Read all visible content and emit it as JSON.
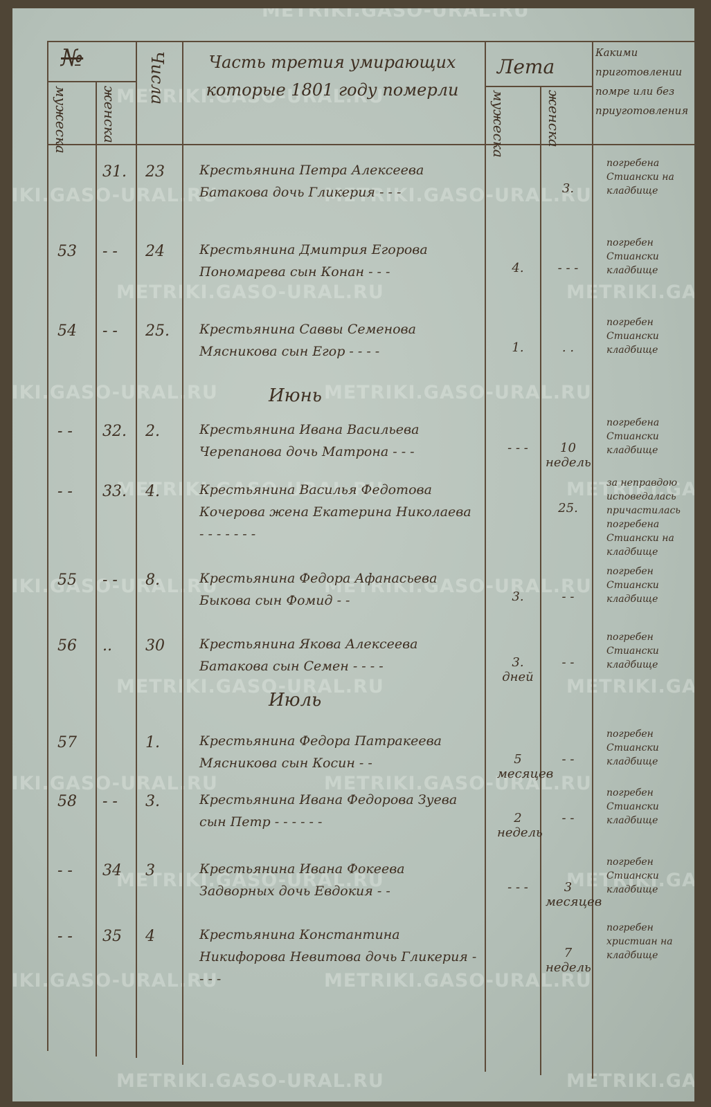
{
  "watermark": "METRIKI.GASO-URAL.RU",
  "header": {
    "number": "№",
    "male": "мужеска",
    "female": "женска",
    "day": "Числа",
    "title": "Часть третия умирающих которые 1801 году померли",
    "age": "Лета",
    "age_male": "мужеска",
    "age_female": "женска",
    "preparation": "Какими приготовлении помре или без приуготовления"
  },
  "sections": [
    {
      "month": "",
      "entries": [
        {
          "male_no": "",
          "female_no": "31.",
          "day": "23",
          "text": "Крестьянина Петра Алексеева Батакова дочь Гликерия - - -",
          "age_male": "",
          "age_female": "3.",
          "note": "погребена Стиански на кладбище"
        },
        {
          "male_no": "53",
          "female_no": "- -",
          "day": "24",
          "text": "Крестьянина Дмитрия Егорова Пономарева сын Конан - - -",
          "age_male": "4.",
          "age_female": "- - -",
          "note": "погребен Стиански кладбище"
        },
        {
          "male_no": "54",
          "female_no": "- -",
          "day": "25.",
          "text": "Крестьянина Саввы Семенова Мясникова сын Егор - - - -",
          "age_male": "1.",
          "age_female": ". .",
          "note": "погребен Стиански кладбище"
        }
      ]
    },
    {
      "month": "Июнь",
      "entries": [
        {
          "male_no": "- -",
          "female_no": "32.",
          "day": "2.",
          "text": "Крестьянина Ивана Васильева Черепанова дочь Матрона - - -",
          "age_male": "- - -",
          "age_female": "10 недель",
          "note": "погребена Стиански кладбище"
        },
        {
          "male_no": "- -",
          "female_no": "33.",
          "day": "4.",
          "text": "Крестьянина Василья Федотова Кочерова жена Екатерина Николаева - - - - - - -",
          "age_male": "",
          "age_female": "25.",
          "note": "за неправдою исповедалась причастилась погребена Стиански на кладбище"
        },
        {
          "male_no": "55",
          "female_no": "- -",
          "day": "8.",
          "text": "Крестьянина Федора Афанасьева Быкова сын Фомид - -",
          "age_male": "3.",
          "age_female": "- -",
          "note": "погребен Стиански кладбище"
        },
        {
          "male_no": "56",
          "female_no": "..",
          "day": "30",
          "text": "Крестьянина Якова Алексеева Батакова сын Семен - - - -",
          "age_male": "3. дней",
          "age_female": "- -",
          "note": "погребен Стиански кладбище"
        }
      ]
    },
    {
      "month": "Июль",
      "entries": [
        {
          "male_no": "57",
          "female_no": "",
          "day": "1.",
          "text": "Крестьянина Федора Патракеева Мясникова сын Косин - -",
          "age_male": "5 месяцев",
          "age_female": "- -",
          "note": "погребен Стиански кладбище"
        },
        {
          "male_no": "58",
          "female_no": "- -",
          "day": "3.",
          "text": "Крестьянина Ивана Федорова Зуева сын Петр - - - - - -",
          "age_male": "2 недель",
          "age_female": "- -",
          "note": "погребен Стиански кладбище"
        },
        {
          "male_no": "- -",
          "female_no": "34",
          "day": "3",
          "text": "Крестьянина Ивана Фокеева Задворных дочь Евдокия - -",
          "age_male": "- - -",
          "age_female": "3 месяцев",
          "note": "погребен Стиански кладбище"
        },
        {
          "male_no": "- -",
          "female_no": "35",
          "day": "4",
          "text": "Крестьянина Константина Никифорова Невитова дочь Гликерия - - - -",
          "age_male": "",
          "age_female": "7 недель",
          "note": "погребен христиан на кладбище"
        }
      ]
    }
  ]
}
